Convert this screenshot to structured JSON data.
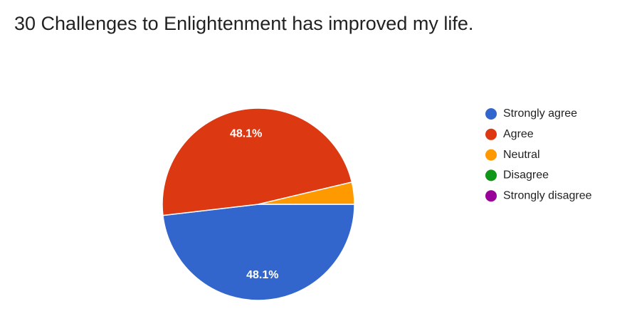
{
  "chart_data": {
    "type": "pie",
    "title": "30 Challenges to Enlightenment has improved my life.",
    "categories": [
      "Strongly agree",
      "Agree",
      "Neutral",
      "Disagree",
      "Strongly disagree"
    ],
    "values": [
      48.1,
      48.1,
      3.7,
      0,
      0
    ],
    "value_labels": [
      "48.1%",
      "48.1%",
      null,
      null,
      null
    ],
    "colors": [
      "#3366cc",
      "#dc3912",
      "#ff9900",
      "#109618",
      "#990099"
    ],
    "legend": "right"
  }
}
